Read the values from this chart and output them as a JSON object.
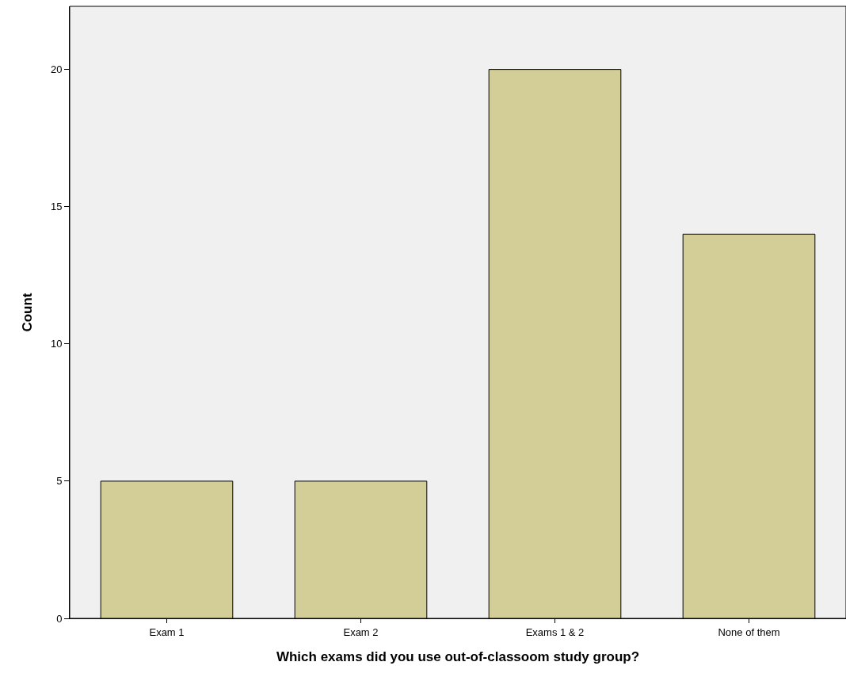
{
  "chart_data": {
    "type": "bar",
    "xlabel": "Which exams did you use out-of-classoom study group?",
    "ylabel": "Count",
    "categories": [
      "Exam 1",
      "Exam 2",
      "Exams 1 & 2",
      "None of them"
    ],
    "values": [
      5,
      5,
      20,
      14
    ],
    "color": "#d3ce97",
    "ylim": [
      0,
      22.3
    ],
    "yticks": [
      0,
      5,
      10,
      15,
      20
    ],
    "grid": false
  }
}
